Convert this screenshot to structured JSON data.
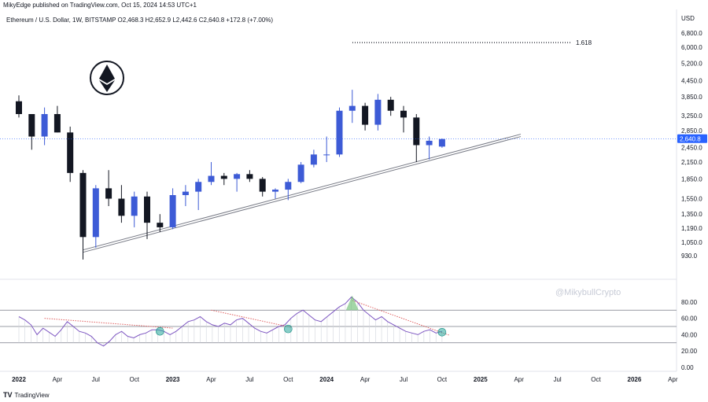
{
  "header": {
    "published": "MikyEdge published on TradingView.com, Oct 15, 2024 14:53 UTC+1",
    "legend": "Ethereum / U.S. Dollar, 1W, BITSTAMP O2,468.3 H2,652.9 L2,442.6 C2,640.8 +172.8 (+7.00%)",
    "currency": "USD"
  },
  "watermark": "@MikybullCrypto",
  "branding": "TradingView",
  "colors": {
    "up": "#3d5bd6",
    "down": "#131722",
    "rsi_line": "#7e57c2",
    "dotted_trend": "#e06060",
    "circle": "#26a69a",
    "price_label_bg": "#2962ff"
  },
  "chart_data": [
    {
      "type": "candlestick",
      "title": "",
      "price_axis": {
        "scale": "log",
        "ticks": [
          930,
          1050,
          1190,
          1350,
          1550,
          1850,
          2150,
          2450,
          2850,
          3250,
          3850,
          4450,
          5200,
          6000,
          6800
        ],
        "tick_labels": [
          "930.0",
          "1,050.0",
          "1,190.0",
          "1,350.0",
          "1,550.0",
          "1,850.0",
          "2,150.0",
          "2,450.0",
          "2,850.0",
          "3,250.0",
          "3,850.0",
          "4,450.0",
          "5,200.0",
          "6,000.0",
          "6,800.0"
        ],
        "range": [
          850,
          7200
        ]
      },
      "time_axis": {
        "labels": [
          "2022",
          "Apr",
          "Jul",
          "Oct",
          "2023",
          "Apr",
          "Jul",
          "Oct",
          "2024",
          "Apr",
          "Jul",
          "Oct",
          "2025",
          "Apr",
          "Jul",
          "Oct",
          "2026",
          "Apr"
        ]
      },
      "current_price": {
        "label": "2,640.8",
        "value": 2640.8
      },
      "fib_level": {
        "label": "1.618",
        "value": 6250
      },
      "trendlines": [
        {
          "name": "support",
          "from": [
            "2022-06",
            960
          ],
          "to": [
            "2025-01",
            2700
          ]
        }
      ],
      "candles_approx": [
        {
          "t": "2022-01",
          "o": 3700,
          "h": 3900,
          "l": 3200,
          "c": 3300
        },
        {
          "t": "2022-02",
          "o": 3300,
          "h": 3250,
          "l": 2400,
          "c": 2700
        },
        {
          "t": "2022-03",
          "o": 2700,
          "h": 3500,
          "l": 2500,
          "c": 3300
        },
        {
          "t": "2022-04",
          "o": 3300,
          "h": 3550,
          "l": 2800,
          "c": 2800
        },
        {
          "t": "2022-05",
          "o": 2800,
          "h": 2950,
          "l": 1800,
          "c": 1950
        },
        {
          "t": "2022-06",
          "o": 1950,
          "h": 2000,
          "l": 900,
          "c": 1100
        },
        {
          "t": "2022-07",
          "o": 1100,
          "h": 1750,
          "l": 1000,
          "c": 1700
        },
        {
          "t": "2022-08",
          "o": 1700,
          "h": 2000,
          "l": 1450,
          "c": 1550
        },
        {
          "t": "2022-09",
          "o": 1550,
          "h": 1750,
          "l": 1250,
          "c": 1330
        },
        {
          "t": "2022-10",
          "o": 1330,
          "h": 1650,
          "l": 1200,
          "c": 1580
        },
        {
          "t": "2022-11",
          "o": 1580,
          "h": 1650,
          "l": 1080,
          "c": 1250
        },
        {
          "t": "2022-12",
          "o": 1250,
          "h": 1350,
          "l": 1150,
          "c": 1200
        },
        {
          "t": "2023-01",
          "o": 1200,
          "h": 1700,
          "l": 1180,
          "c": 1600
        },
        {
          "t": "2023-02",
          "o": 1600,
          "h": 1750,
          "l": 1450,
          "c": 1650
        },
        {
          "t": "2023-03",
          "o": 1650,
          "h": 1850,
          "l": 1400,
          "c": 1800
        },
        {
          "t": "2023-04",
          "o": 1800,
          "h": 2150,
          "l": 1750,
          "c": 1900
        },
        {
          "t": "2023-05",
          "o": 1900,
          "h": 1950,
          "l": 1750,
          "c": 1850
        },
        {
          "t": "2023-06",
          "o": 1850,
          "h": 1950,
          "l": 1650,
          "c": 1930
        },
        {
          "t": "2023-07",
          "o": 1930,
          "h": 2000,
          "l": 1800,
          "c": 1850
        },
        {
          "t": "2023-08",
          "o": 1850,
          "h": 1880,
          "l": 1580,
          "c": 1650
        },
        {
          "t": "2023-09",
          "o": 1650,
          "h": 1700,
          "l": 1550,
          "c": 1680
        },
        {
          "t": "2023-10",
          "o": 1680,
          "h": 1850,
          "l": 1530,
          "c": 1800
        },
        {
          "t": "2023-11",
          "o": 1800,
          "h": 2150,
          "l": 1780,
          "c": 2100
        },
        {
          "t": "2023-12",
          "o": 2100,
          "h": 2400,
          "l": 2050,
          "c": 2300
        },
        {
          "t": "2024-01",
          "o": 2300,
          "h": 2700,
          "l": 2150,
          "c": 2300
        },
        {
          "t": "2024-02",
          "o": 2300,
          "h": 3500,
          "l": 2250,
          "c": 3400
        },
        {
          "t": "2024-03",
          "o": 3400,
          "h": 4100,
          "l": 3050,
          "c": 3550
        },
        {
          "t": "2024-04",
          "o": 3550,
          "h": 3650,
          "l": 2850,
          "c": 3000
        },
        {
          "t": "2024-05",
          "o": 3000,
          "h": 3950,
          "l": 2850,
          "c": 3750
        },
        {
          "t": "2024-06",
          "o": 3750,
          "h": 3850,
          "l": 3250,
          "c": 3400
        },
        {
          "t": "2024-07",
          "o": 3400,
          "h": 3550,
          "l": 2800,
          "c": 3200
        },
        {
          "t": "2024-08",
          "o": 3200,
          "h": 3300,
          "l": 2150,
          "c": 2500
        },
        {
          "t": "2024-09",
          "o": 2500,
          "h": 2700,
          "l": 2200,
          "c": 2600
        },
        {
          "t": "2024-10",
          "o": 2468.3,
          "h": 2652.9,
          "l": 2442.6,
          "c": 2640.8
        }
      ]
    },
    {
      "type": "line",
      "title": "",
      "y_axis": {
        "ticks": [
          0,
          20,
          40,
          60,
          80
        ],
        "tick_labels": [
          "0.00",
          "20.00",
          "40.00",
          "60.00",
          "80.00"
        ],
        "range": [
          -3,
          103
        ]
      },
      "levels": [
        70,
        50,
        30
      ],
      "series": [
        {
          "values": [
            62,
            58,
            52,
            40,
            48,
            43,
            38,
            46,
            56,
            50,
            44,
            42,
            38,
            30,
            26,
            32,
            40,
            44,
            38,
            36,
            40,
            42,
            46,
            46,
            44,
            40,
            44,
            50,
            56,
            58,
            62,
            56,
            52,
            50,
            54,
            52,
            58,
            60,
            54,
            48,
            44,
            42,
            46,
            50,
            52,
            60,
            66,
            70,
            64,
            58,
            56,
            62,
            68,
            74,
            78,
            86,
            80,
            70,
            64,
            58,
            62,
            56,
            52,
            48,
            44,
            42,
            40,
            44,
            46,
            42,
            44
          ],
          "x_start": "2022-01",
          "x_end": "2024-10"
        }
      ],
      "highlight_points": [
        {
          "t": "2022-12",
          "v": 44
        },
        {
          "t": "2023-10",
          "v": 47
        },
        {
          "t": "2024-10",
          "v": 43
        }
      ],
      "peak_marker": {
        "t": "2024-03",
        "v": 86
      }
    }
  ]
}
